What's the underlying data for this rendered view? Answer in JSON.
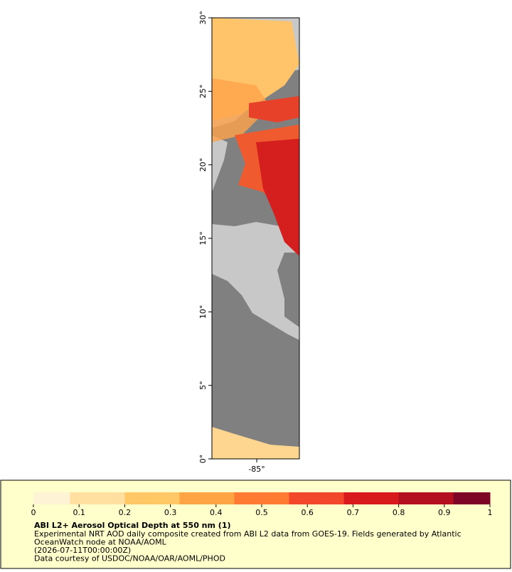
{
  "map": {
    "latlim": [
      0,
      30
    ],
    "lonlim": [
      -88.05,
      -82.1
    ],
    "lat_ticks": [
      {
        "value": 0,
        "label": "0°"
      },
      {
        "value": 5,
        "label": "5°"
      },
      {
        "value": 10,
        "label": "10°"
      },
      {
        "value": 15,
        "label": "15°"
      },
      {
        "value": 20,
        "label": "20°"
      },
      {
        "value": 25,
        "label": "25°"
      },
      {
        "value": 30,
        "label": "30°"
      }
    ],
    "lon_ticks": [
      {
        "value": -85,
        "label": "-85°"
      }
    ]
  },
  "legend": {
    "ticks": [
      0,
      0.1,
      0.2,
      0.3,
      0.4,
      0.5,
      0.6,
      0.7,
      0.8,
      0.9,
      1
    ],
    "range": [
      0,
      1
    ],
    "colors": [
      "#fff3d6",
      "#ffe0a0",
      "#ffc765",
      "#ffa444",
      "#ff7b33",
      "#f2472a",
      "#d91a1c",
      "#b30f1f",
      "#7d0526"
    ],
    "title": "ABI L2+ Aerosol Optical Depth at 550 nm (1)",
    "lines": [
      "Experimental NRT AOD daily composite created from ABI L2 data from GOES-19. Fields generated by Atlantic",
      "OceanWatch node at NOAA/AOML",
      "(2026-07-11T00:00:00Z)",
      "Data courtesy of USDOC/NOAA/OAR/AOML/PHOD"
    ]
  }
}
